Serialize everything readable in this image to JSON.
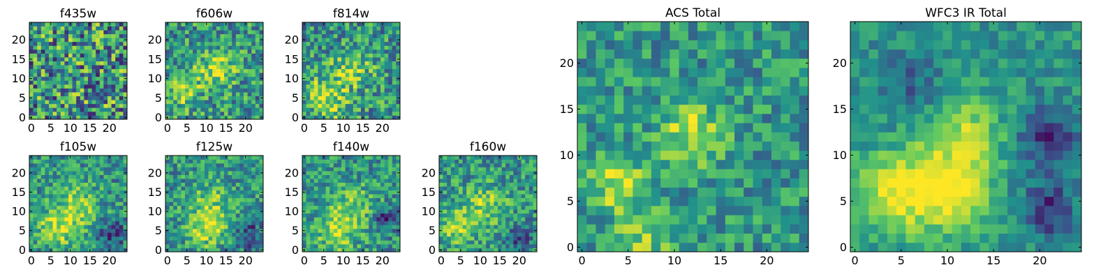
{
  "figure": {
    "background": "#ffffff",
    "colormap": "viridis",
    "colormap_stops": [
      "#440154",
      "#3b528b",
      "#21918c",
      "#5ec962",
      "#fde725"
    ]
  },
  "chart_data": [
    {
      "type": "heatmap",
      "title": "f435w",
      "grid_size": [
        25,
        25
      ],
      "xlim": [
        0,
        24
      ],
      "ylim": [
        0,
        24
      ],
      "xticks": [
        0,
        5,
        10,
        15,
        20
      ],
      "yticks": [
        0,
        5,
        10,
        15,
        20
      ],
      "noise_level": 0.42,
      "blobs": []
    },
    {
      "type": "heatmap",
      "title": "f606w",
      "grid_size": [
        25,
        25
      ],
      "xlim": [
        0,
        24
      ],
      "ylim": [
        0,
        24
      ],
      "xticks": [
        0,
        5,
        10,
        15,
        20
      ],
      "yticks": [
        0,
        5,
        10,
        15,
        20
      ],
      "noise_level": 0.3,
      "blobs": [
        {
          "x": 12,
          "y": 12,
          "sigma": 3.5,
          "amplitude": 0.35
        },
        {
          "x": 4,
          "y": 6,
          "sigma": 2.5,
          "amplitude": 0.35
        }
      ]
    },
    {
      "type": "heatmap",
      "title": "f814w",
      "grid_size": [
        25,
        25
      ],
      "xlim": [
        0,
        24
      ],
      "ylim": [
        0,
        24
      ],
      "xticks": [
        0,
        5,
        10,
        15,
        20
      ],
      "yticks": [
        0,
        5,
        10,
        15,
        20
      ],
      "noise_level": 0.3,
      "blobs": [
        {
          "x": 12,
          "y": 12,
          "sigma": 3.5,
          "amplitude": 0.32
        },
        {
          "x": 5,
          "y": 6,
          "sigma": 2.8,
          "amplitude": 0.35
        },
        {
          "x": 9,
          "y": 2,
          "sigma": 2.5,
          "amplitude": 0.2
        }
      ]
    },
    {
      "type": "heatmap",
      "title": "f105w",
      "grid_size": [
        25,
        25
      ],
      "xlim": [
        0,
        24
      ],
      "ylim": [
        0,
        24
      ],
      "xticks": [
        0,
        5,
        10,
        15,
        20
      ],
      "yticks": [
        0,
        5,
        10,
        15,
        20
      ],
      "noise_level": 0.25,
      "blobs": [
        {
          "x": 12,
          "y": 12,
          "sigma": 3.5,
          "amplitude": 0.3
        },
        {
          "x": 7,
          "y": 6,
          "sigma": 3.5,
          "amplitude": 0.38
        },
        {
          "x": 21,
          "y": 4,
          "sigma": 2.5,
          "amplitude": -0.3
        }
      ]
    },
    {
      "type": "heatmap",
      "title": "f125w",
      "grid_size": [
        25,
        25
      ],
      "xlim": [
        0,
        24
      ],
      "ylim": [
        0,
        24
      ],
      "xticks": [
        0,
        5,
        10,
        15,
        20
      ],
      "yticks": [
        0,
        5,
        10,
        15,
        20
      ],
      "noise_level": 0.25,
      "blobs": [
        {
          "x": 11,
          "y": 11,
          "sigma": 4,
          "amplitude": 0.28
        },
        {
          "x": 10,
          "y": 5,
          "sigma": 3,
          "amplitude": 0.3
        },
        {
          "x": 21,
          "y": 4,
          "sigma": 2.5,
          "amplitude": -0.3
        }
      ]
    },
    {
      "type": "heatmap",
      "title": "f140w",
      "grid_size": [
        25,
        25
      ],
      "xlim": [
        0,
        24
      ],
      "ylim": [
        0,
        24
      ],
      "xticks": [
        0,
        5,
        10,
        15,
        20
      ],
      "yticks": [
        0,
        5,
        10,
        15,
        20
      ],
      "noise_level": 0.25,
      "blobs": [
        {
          "x": 12,
          "y": 11,
          "sigma": 4,
          "amplitude": 0.28
        },
        {
          "x": 8,
          "y": 4,
          "sigma": 3,
          "amplitude": 0.35
        },
        {
          "x": 21,
          "y": 8,
          "sigma": 2,
          "amplitude": -0.35
        }
      ]
    },
    {
      "type": "heatmap",
      "title": "f160w",
      "grid_size": [
        25,
        25
      ],
      "xlim": [
        0,
        24
      ],
      "ylim": [
        0,
        24
      ],
      "xticks": [
        0,
        5,
        10,
        15,
        20
      ],
      "yticks": [
        0,
        5,
        10,
        15,
        20
      ],
      "noise_level": 0.25,
      "blobs": [
        {
          "x": 11,
          "y": 11,
          "sigma": 4,
          "amplitude": 0.3
        },
        {
          "x": 4,
          "y": 6,
          "sigma": 3,
          "amplitude": 0.35
        },
        {
          "x": 20,
          "y": 3,
          "sigma": 2,
          "amplitude": -0.35
        }
      ]
    },
    {
      "type": "heatmap",
      "title": "ACS Total",
      "grid_size": [
        25,
        25
      ],
      "xlim": [
        0,
        24
      ],
      "ylim": [
        0,
        24
      ],
      "xticks": [
        0,
        5,
        10,
        15,
        20
      ],
      "yticks": [
        0,
        5,
        10,
        15,
        20
      ],
      "noise_level": 0.22,
      "blobs": [
        {
          "x": 4,
          "y": 7,
          "sigma": 2,
          "amplitude": 0.42
        },
        {
          "x": 12,
          "y": 12,
          "sigma": 2.5,
          "amplitude": 0.38
        },
        {
          "x": 7,
          "y": 1,
          "sigma": 2.5,
          "amplitude": 0.25
        }
      ]
    },
    {
      "type": "heatmap",
      "title": "WFC3 IR Total",
      "grid_size": [
        25,
        25
      ],
      "xlim": [
        0,
        24
      ],
      "ylim": [
        0,
        24
      ],
      "xticks": [
        0,
        5,
        10,
        15,
        20
      ],
      "yticks": [
        0,
        5,
        10,
        15,
        20
      ],
      "noise_level": 0.14,
      "blobs": [
        {
          "x": 4,
          "y": 6,
          "sigma": 3,
          "amplitude": 0.45
        },
        {
          "x": 10,
          "y": 6,
          "sigma": 3,
          "amplitude": 0.45
        },
        {
          "x": 12,
          "y": 12,
          "sigma": 3,
          "amplitude": 0.35
        },
        {
          "x": 21,
          "y": 4,
          "sigma": 2,
          "amplitude": -0.4
        },
        {
          "x": 21,
          "y": 12,
          "sigma": 2.5,
          "amplitude": -0.35
        },
        {
          "x": 6,
          "y": 18,
          "sigma": 2.5,
          "amplitude": -0.2
        }
      ]
    }
  ]
}
